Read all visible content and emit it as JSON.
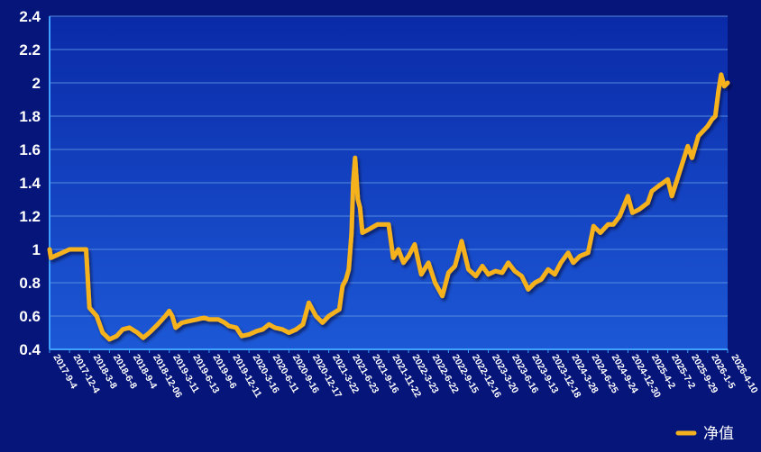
{
  "chart_data": {
    "type": "line",
    "title": "",
    "xlabel": "",
    "ylabel": "",
    "ylim": [
      0.4,
      2.4
    ],
    "yticks": [
      "2.4",
      "2.2",
      "2",
      "1.8",
      "1.6",
      "1.4",
      "1.2",
      "1",
      "0.8",
      "0.6",
      "0.4"
    ],
    "x_tick_labels": [
      "2017-9-4",
      "2017-12-4",
      "2018-3-8",
      "2018-6-8",
      "2018-9-4",
      "2018-12-06",
      "2019-3-11",
      "2019-6-13",
      "2019-9-6",
      "2019-12-11",
      "2020-3-16",
      "2020-6-11",
      "2020-9-16",
      "2020-12-17",
      "2021-3-22",
      "2021-6-23",
      "2021-9-16",
      "2021-11-22",
      "2022-3-23",
      "2022-6-22",
      "2022-9-15",
      "2022-12-16",
      "2023-3-20",
      "2023-6-16",
      "2023-9-13",
      "2023-12-18",
      "2024-3-28",
      "2024-6-25",
      "2024-9-24",
      "2024-12-30",
      "2025-4-2",
      "2025-7-2",
      "2025-9-29",
      "2026-1-5",
      "2026-4-10"
    ],
    "grid": true,
    "legend_position": "bottom-right",
    "series": [
      {
        "name": "净值",
        "color": "#f5b21c",
        "x": [
          "2017-9-4",
          "2017-9-10",
          "2017-12-4",
          "2017-12-18",
          "2018-1-5",
          "2018-2-1",
          "2018-2-20",
          "2018-3-8",
          "2018-4-10",
          "2018-5-8",
          "2018-6-8",
          "2018-7-10",
          "2018-8-6",
          "2018-9-4",
          "2018-10-12",
          "2018-11-8",
          "2018-12-06",
          "2019-1-15",
          "2019-2-20",
          "2019-3-11",
          "2019-3-25",
          "2019-4-10",
          "2019-5-10",
          "2019-6-13",
          "2019-7-18",
          "2019-8-15",
          "2019-9-6",
          "2019-10-20",
          "2019-11-20",
          "2019-12-11",
          "2020-1-15",
          "2020-2-10",
          "2020-3-16",
          "2020-4-20",
          "2020-5-15",
          "2020-6-11",
          "2020-7-10",
          "2020-8-15",
          "2020-9-16",
          "2020-10-20",
          "2020-11-20",
          "2020-12-17",
          "2021-1-20",
          "2021-2-20",
          "2021-3-22",
          "2021-4-15",
          "2021-5-10",
          "2021-5-25",
          "2021-6-10",
          "2021-6-23",
          "2021-7-5",
          "2021-7-12",
          "2021-7-20",
          "2021-8-1",
          "2021-8-10",
          "2021-8-20",
          "2021-9-16",
          "2021-10-15",
          "2021-11-22",
          "2021-12-20",
          "2022-1-20",
          "2022-2-20",
          "2022-3-23",
          "2022-4-20",
          "2022-5-20",
          "2022-6-22",
          "2022-7-20",
          "2022-8-20",
          "2022-9-15",
          "2022-10-15",
          "2022-11-15",
          "2022-12-16",
          "2023-1-20",
          "2023-2-20",
          "2023-3-20",
          "2023-4-20",
          "2023-5-20",
          "2023-6-16",
          "2023-7-15",
          "2023-8-15",
          "2023-9-13",
          "2023-10-15",
          "2023-11-15",
          "2023-12-18",
          "2024-1-20",
          "2024-2-20",
          "2024-3-28",
          "2024-4-20",
          "2024-5-20",
          "2024-6-25",
          "2024-7-20",
          "2024-8-20",
          "2024-9-24",
          "2024-10-20",
          "2024-11-20",
          "2024-12-30",
          "2025-1-20",
          "2025-2-20",
          "2025-4-2",
          "2025-4-20",
          "2025-5-20",
          "2025-7-2",
          "2025-7-20",
          "2025-8-20",
          "2025-9-29",
          "2025-10-20",
          "2025-11-20",
          "2026-1-5",
          "2026-1-25",
          "2026-2-10",
          "2026-2-25",
          "2026-3-10",
          "2026-3-25",
          "2026-4-10"
        ],
        "values": [
          1.0,
          0.95,
          1.0,
          1.0,
          1.0,
          1.0,
          1.0,
          0.65,
          0.6,
          0.5,
          0.46,
          0.48,
          0.52,
          0.53,
          0.5,
          0.47,
          0.5,
          0.55,
          0.6,
          0.63,
          0.6,
          0.53,
          0.56,
          0.57,
          0.58,
          0.59,
          0.58,
          0.58,
          0.56,
          0.54,
          0.53,
          0.48,
          0.49,
          0.51,
          0.52,
          0.55,
          0.53,
          0.52,
          0.5,
          0.52,
          0.55,
          0.68,
          0.6,
          0.56,
          0.6,
          0.62,
          0.64,
          0.78,
          0.82,
          0.88,
          1.1,
          1.4,
          1.55,
          1.3,
          1.25,
          1.1,
          1.12,
          1.15,
          1.15,
          0.95,
          1.0,
          0.92,
          0.96,
          1.03,
          0.85,
          0.92,
          0.8,
          0.72,
          0.86,
          0.9,
          1.05,
          0.88,
          0.84,
          0.9,
          0.85,
          0.87,
          0.86,
          0.92,
          0.87,
          0.84,
          0.76,
          0.8,
          0.82,
          0.88,
          0.85,
          0.92,
          0.98,
          0.92,
          0.96,
          0.98,
          1.14,
          1.1,
          1.15,
          1.15,
          1.2,
          1.32,
          1.22,
          1.24,
          1.28,
          1.35,
          1.38,
          1.42,
          1.32,
          1.45,
          1.62,
          1.55,
          1.68,
          1.74,
          1.78,
          1.8,
          1.95,
          2.05,
          1.98,
          2.0
        ]
      }
    ]
  }
}
